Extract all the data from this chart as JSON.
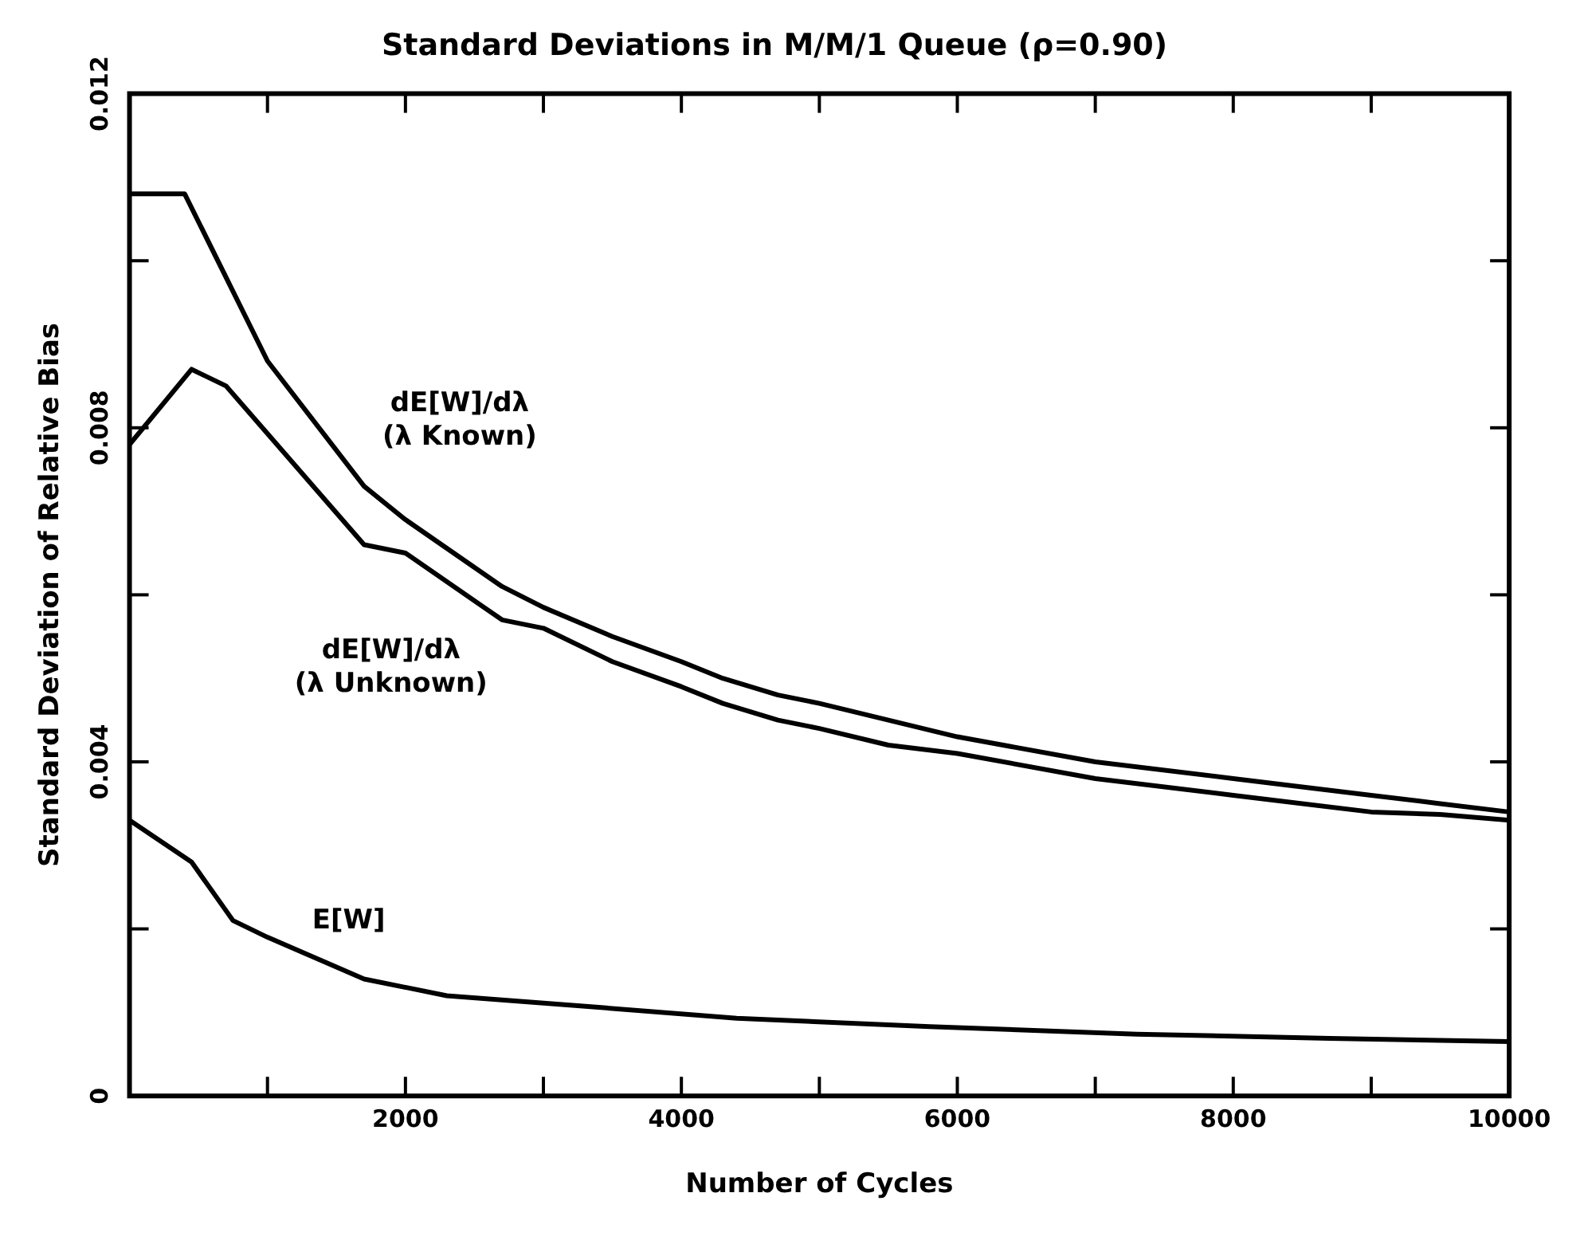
{
  "chart_data": {
    "type": "line",
    "title": "Standard Deviations in M/M/1 Queue (ρ=0.90)",
    "xlabel": "Number of Cycles",
    "ylabel": "Standard Deviation of Relative Bias",
    "xlim": [
      0,
      10000
    ],
    "xticks": [
      {
        "value": 1000,
        "label": null
      },
      2000,
      {
        "value": 3000,
        "label": null
      },
      4000,
      {
        "value": 5000,
        "label": null
      },
      6000,
      {
        "value": 7000,
        "label": null
      },
      8000,
      {
        "value": 9000,
        "label": null
      },
      10000
    ],
    "ylim": [
      0,
      0.012
    ],
    "yticks": [
      0,
      {
        "value": 0.002,
        "label": null
      },
      0.004,
      {
        "value": 0.006,
        "label": null
      },
      0.008,
      {
        "value": 0.01,
        "label": null
      },
      0.012
    ],
    "grid": false,
    "legend": false,
    "marker": "none",
    "line_style": "solid",
    "series": [
      {
        "name": "dE[W]/dλ\n(λ Known)",
        "color": "#000000",
        "x": [
          0,
          400,
          1000,
          1700,
          2000,
          2700,
          3000,
          3500,
          4000,
          4300,
          4700,
          5000,
          5500,
          6000,
          7000,
          8000,
          9000,
          9500,
          10000
        ],
        "values": [
          0.0108,
          0.0108,
          0.0088,
          0.0073,
          0.0069,
          0.0061,
          0.00585,
          0.0055,
          0.0052,
          0.005,
          0.0048,
          0.0047,
          0.0045,
          0.0043,
          0.004,
          0.0038,
          0.0036,
          0.0035,
          0.0034
        ]
      },
      {
        "name": "dE[W]/dλ\n(λ Unknown)",
        "color": "#000000",
        "x": [
          0,
          450,
          700,
          1700,
          2000,
          2700,
          3000,
          3500,
          4000,
          4300,
          4700,
          5000,
          5500,
          6000,
          7000,
          8000,
          9000,
          9500,
          10000
        ],
        "values": [
          0.0078,
          0.0087,
          0.0085,
          0.0066,
          0.0065,
          0.0057,
          0.0056,
          0.0052,
          0.0049,
          0.0047,
          0.0045,
          0.0044,
          0.0042,
          0.0041,
          0.0038,
          0.0036,
          0.0034,
          0.00337,
          0.0033
        ]
      },
      {
        "name": "E[W]",
        "color": "#000000",
        "x": [
          0,
          450,
          750,
          1000,
          1700,
          2300,
          3400,
          4400,
          5800,
          7300,
          8700,
          10000
        ],
        "values": [
          0.0033,
          0.0028,
          0.0021,
          0.0019,
          0.0014,
          0.0012,
          0.00106,
          0.00093,
          0.00083,
          0.00074,
          0.00069,
          0.00065
        ]
      }
    ]
  }
}
